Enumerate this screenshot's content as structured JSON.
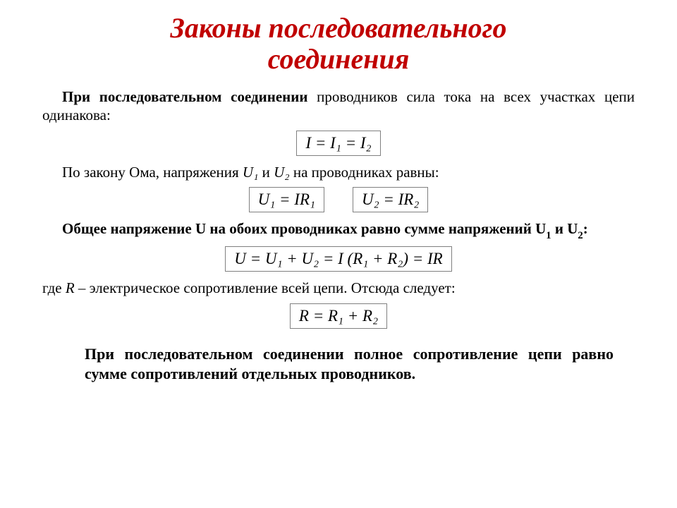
{
  "colors": {
    "title": "#c00000",
    "text": "#000000",
    "formula_border": "#808080",
    "background": "#ffffff"
  },
  "fontsizes": {
    "title": 40,
    "body": 21,
    "formula": 23,
    "conclusion": 22
  },
  "title_line1": "Законы последовательного",
  "title_line2": "соединения",
  "p1_bold": "При последовательном соединении",
  "p1_rest": " проводников сила тока на всех участках цепи одинакова:",
  "f1": "I = I₁ = I₂",
  "p2_a": "По закону Ома, напряжения ",
  "p2_u1": "U₁",
  "p2_b": " и ",
  "p2_u2": "U₂",
  "p2_c": " на проводниках равны:",
  "f2a": "U₁ = IR₁",
  "f2b": "U₂ = IR₂",
  "p3_a": "Общее напряжение U на обоих проводниках равно сумме напряжений U",
  "p3_s1": "1",
  "p3_b": " и U",
  "p3_s2": "2",
  "p3_c": ":",
  "f3": "U = U₁ + U₂ = I (R₁ + R₂) = IR",
  "p4_a": "где ",
  "p4_r": "R",
  "p4_b": " – электрическое сопротивление всей цепи. Отсюда следует:",
  "f4": "R = R₁ + R₂",
  "conclusion": "При последовательном соединении полное сопротивление цепи равно сумме сопротивлений отдельных проводников."
}
